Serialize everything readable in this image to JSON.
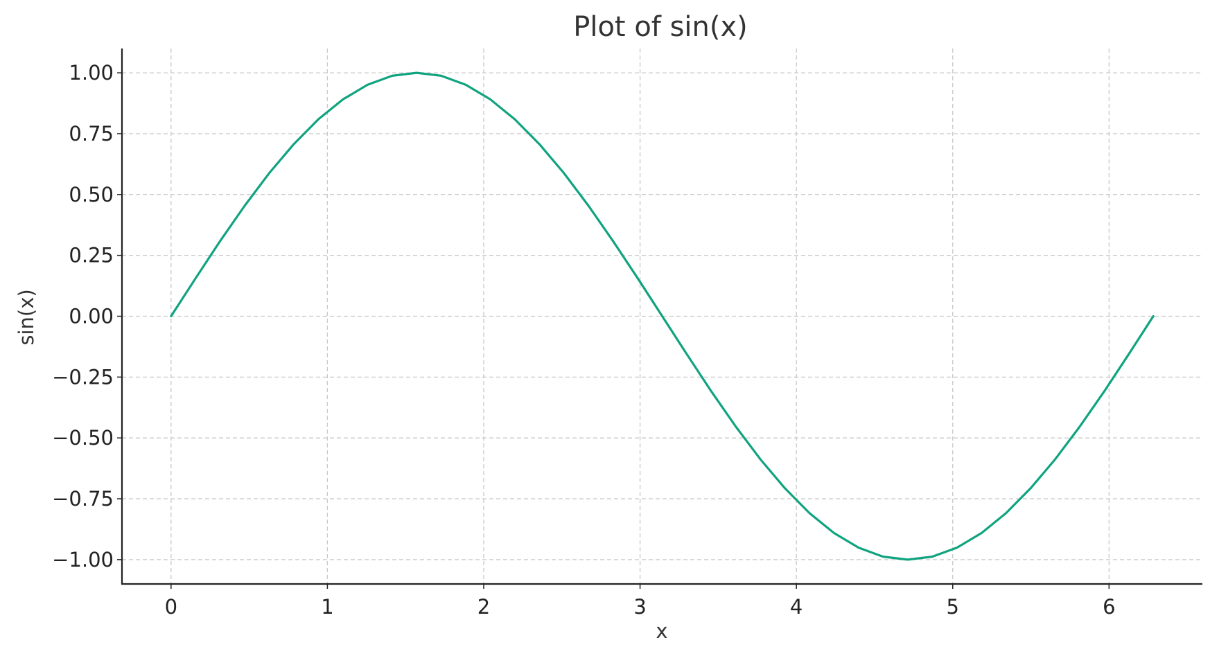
{
  "chart_data": {
    "type": "line",
    "title": "Plot of sin(x)",
    "xlabel": "x",
    "ylabel": "sin(x)",
    "xlim": [
      -0.314,
      6.597
    ],
    "ylim": [
      -1.1,
      1.1
    ],
    "xticks": [
      0,
      1,
      2,
      3,
      4,
      5,
      6
    ],
    "xtick_labels": [
      "0",
      "1",
      "2",
      "3",
      "4",
      "5",
      "6"
    ],
    "yticks": [
      1.0,
      0.75,
      0.5,
      0.25,
      0.0,
      -0.25,
      -0.5,
      -0.75,
      -1.0
    ],
    "ytick_labels": [
      "1.00",
      "0.75",
      "0.50",
      "0.25",
      "0.00",
      "−0.25",
      "−0.50",
      "−0.75",
      "−1.00"
    ],
    "grid": true,
    "series": [
      {
        "color": "#10a37f",
        "x": [
          0,
          0.157,
          0.314,
          0.471,
          0.628,
          0.785,
          0.942,
          1.1,
          1.257,
          1.414,
          1.571,
          1.728,
          1.885,
          2.042,
          2.199,
          2.356,
          2.513,
          2.67,
          2.827,
          2.985,
          3.142,
          3.299,
          3.456,
          3.613,
          3.77,
          3.927,
          4.084,
          4.241,
          4.398,
          4.555,
          4.712,
          4.869,
          5.027,
          5.184,
          5.341,
          5.498,
          5.655,
          5.812,
          5.969,
          6.126,
          6.283
        ],
        "y": [
          0,
          0.156,
          0.309,
          0.454,
          0.588,
          0.707,
          0.809,
          0.891,
          0.951,
          0.988,
          1.0,
          0.988,
          0.951,
          0.891,
          0.809,
          0.707,
          0.588,
          0.454,
          0.309,
          0.156,
          0,
          -0.156,
          -0.309,
          -0.454,
          -0.588,
          -0.707,
          -0.809,
          -0.891,
          -0.951,
          -0.988,
          -1.0,
          -0.988,
          -0.951,
          -0.891,
          -0.809,
          -0.707,
          -0.588,
          -0.454,
          -0.309,
          -0.156,
          0
        ]
      }
    ]
  }
}
